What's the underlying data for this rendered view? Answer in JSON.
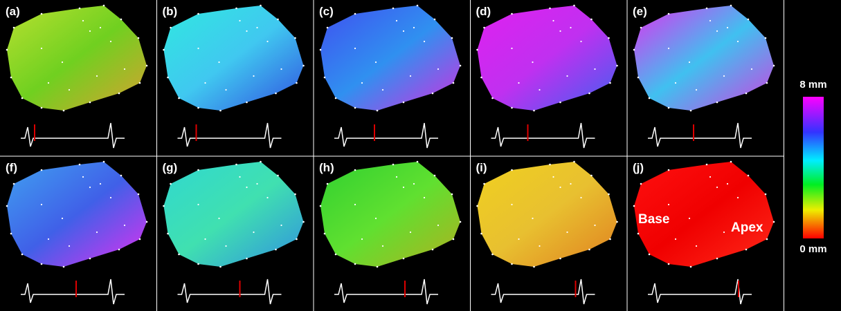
{
  "panels": [
    {
      "label": "(a)"
    },
    {
      "label": "(b)"
    },
    {
      "label": "(c)"
    },
    {
      "label": "(d)"
    },
    {
      "label": "(e)"
    },
    {
      "label": "(f)"
    },
    {
      "label": "(g)"
    },
    {
      "label": "(h)"
    },
    {
      "label": "(i)"
    },
    {
      "label": "(j)"
    }
  ],
  "annotations": {
    "base": "Base",
    "apex": "Apex"
  },
  "colorbar": {
    "max_label": "8 mm",
    "min_label": "0 mm"
  }
}
